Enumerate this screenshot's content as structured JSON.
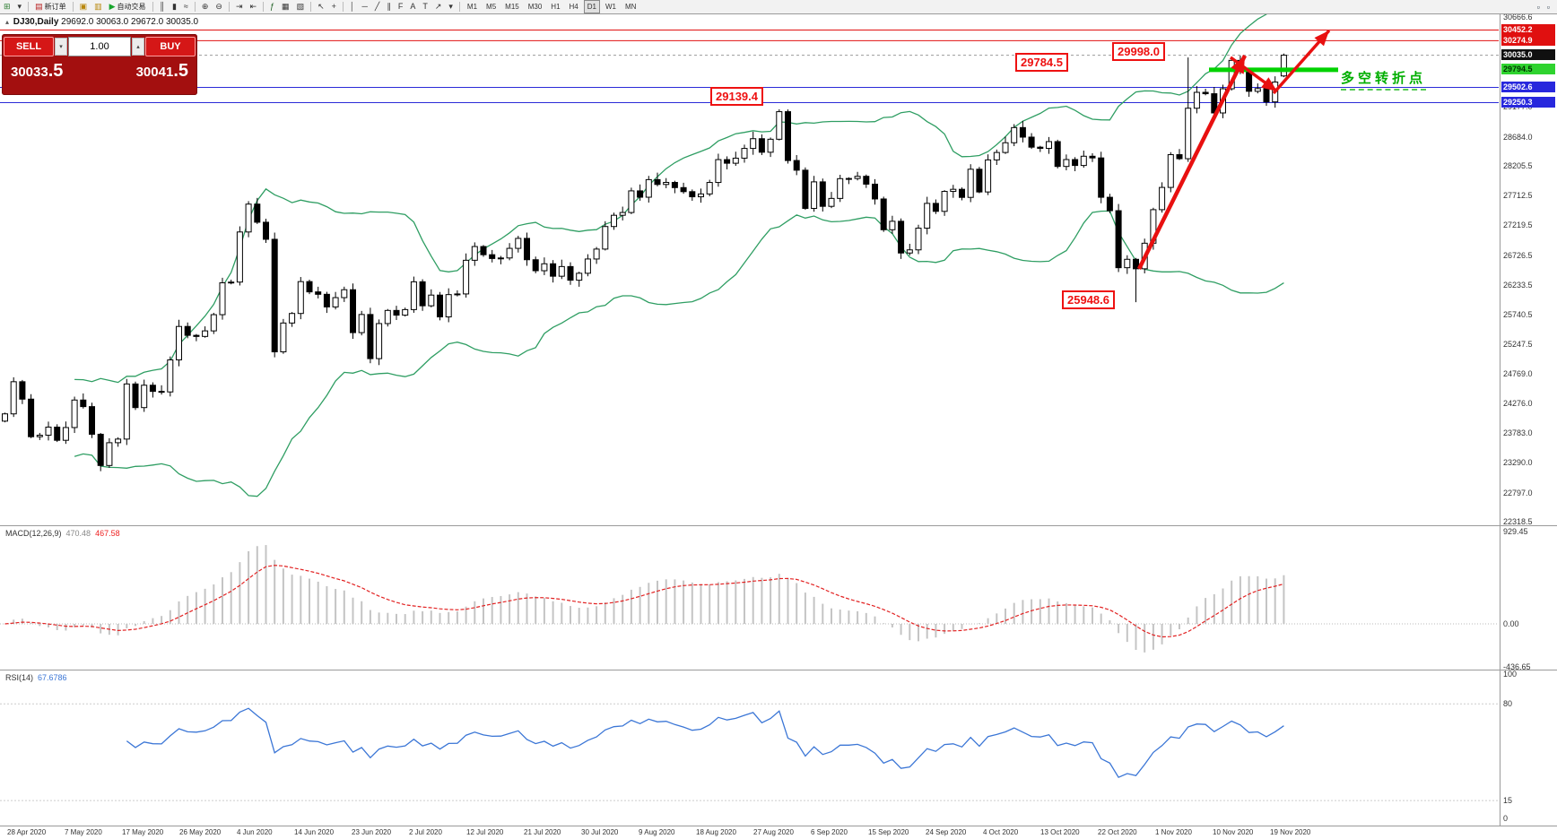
{
  "toolbar": {
    "items": [
      {
        "name": "new-chart-icon",
        "glyph": "⊞",
        "color": "#2e7d32"
      },
      {
        "name": "new-chart-dropdown-icon",
        "glyph": "▾",
        "color": "#333"
      },
      {
        "type": "sep"
      },
      {
        "name": "new-order-button",
        "glyph": "▤",
        "color": "#b71c1c",
        "label": "新订单"
      },
      {
        "type": "sep"
      },
      {
        "name": "profiles-icon",
        "glyph": "▣",
        "color": "#b8860b"
      },
      {
        "name": "charts-list-icon",
        "glyph": "▥",
        "color": "#b8860b"
      },
      {
        "name": "autotrade-button",
        "glyph": "▶",
        "color": "#18a52c",
        "label": "自动交易"
      },
      {
        "type": "sep"
      },
      {
        "name": "bars-chart-icon",
        "glyph": "║",
        "color": "#333"
      },
      {
        "name": "candles-chart-icon",
        "glyph": "▮",
        "color": "#333"
      },
      {
        "name": "line-chart-icon",
        "glyph": "≈",
        "color": "#333"
      },
      {
        "type": "sep"
      },
      {
        "name": "zoom-in-icon",
        "glyph": "⊕",
        "color": "#333"
      },
      {
        "name": "zoom-out-icon",
        "glyph": "⊖",
        "color": "#333"
      },
      {
        "type": "sep"
      },
      {
        "name": "autoscroll-icon",
        "glyph": "⇥",
        "color": "#333"
      },
      {
        "name": "chart-shift-icon",
        "glyph": "⇤",
        "color": "#333"
      },
      {
        "type": "sep"
      },
      {
        "name": "indicators-icon",
        "glyph": "ƒ",
        "color": "#1b5e20"
      },
      {
        "name": "periods-icon",
        "glyph": "▦",
        "color": "#333"
      },
      {
        "name": "templates-icon",
        "glyph": "▧",
        "color": "#333"
      },
      {
        "type": "sep"
      },
      {
        "name": "cursor-icon",
        "glyph": "↖",
        "color": "#333"
      },
      {
        "name": "crosshair-icon",
        "glyph": "+",
        "color": "#333"
      },
      {
        "type": "sep"
      },
      {
        "name": "vertical-line-icon",
        "glyph": "│",
        "color": "#333"
      },
      {
        "name": "horizontal-line-icon",
        "glyph": "─",
        "color": "#333"
      },
      {
        "name": "trendline-icon",
        "glyph": "╱",
        "color": "#333"
      },
      {
        "name": "channel-icon",
        "glyph": "∥",
        "color": "#333"
      },
      {
        "name": "fibonacci-icon",
        "glyph": "F",
        "color": "#333"
      },
      {
        "name": "text-icon",
        "glyph": "A",
        "color": "#333"
      },
      {
        "name": "label-icon",
        "glyph": "T",
        "color": "#333"
      },
      {
        "name": "arrows-icon",
        "glyph": "↗",
        "color": "#333"
      },
      {
        "name": "arrows-dropdown-icon",
        "glyph": "▾",
        "color": "#333"
      },
      {
        "type": "sep"
      }
    ],
    "timeframes": [
      "M1",
      "M5",
      "M15",
      "M30",
      "H1",
      "H4",
      "D1",
      "W1",
      "MN"
    ],
    "active_timeframe": "D1",
    "right_icons": [
      {
        "name": "favorites-icon",
        "glyph": "▫"
      },
      {
        "name": "layout-icon",
        "glyph": "▫"
      }
    ]
  },
  "chart": {
    "symbol_title": "DJ30,Daily",
    "ohlc_title": "29692.0 30063.0 29672.0 30035.0",
    "trade_panel": {
      "sell_label": "SELL",
      "buy_label": "BUY",
      "volume": "1.00",
      "sell_price_main": "30033",
      "sell_price_frac": ".5",
      "buy_price_main": "30041",
      "buy_price_frac": ".5"
    },
    "price_axis": {
      "ticks": [
        "30666.6",
        "29177.0",
        "28684.0",
        "28205.5",
        "27712.5",
        "27219.5",
        "26726.5",
        "26233.5",
        "25740.5",
        "25247.5",
        "24769.0",
        "24276.0",
        "23783.0",
        "23290.0",
        "22797.0",
        "22318.5"
      ],
      "boxes": [
        {
          "value": "30452.2",
          "bg": "#e01010",
          "fg": "#ffffff"
        },
        {
          "value": "30274.9",
          "bg": "#e01010",
          "fg": "#ffffff"
        },
        {
          "value": "30035.0",
          "bg": "#101010",
          "fg": "#ffffff"
        },
        {
          "value": "29794.5",
          "bg": "#2fd32f",
          "fg": "#003300"
        },
        {
          "value": "29502.6",
          "bg": "#2828dd",
          "fg": "#ffffff"
        },
        {
          "value": "29250.3",
          "bg": "#2828dd",
          "fg": "#ffffff"
        }
      ]
    },
    "levels": {
      "resistance": [
        30452.2,
        30274.9
      ],
      "support": [
        29502.6,
        29250.3
      ],
      "pivot_green": 29794.5,
      "current": 30035.0
    },
    "annotations": {
      "labels": [
        {
          "text": "29784.5"
        },
        {
          "text": "29998.0"
        },
        {
          "text": "29139.4"
        },
        {
          "text": "25948.6"
        }
      ],
      "turning_point": "多空转折点"
    }
  },
  "macd_panel": {
    "title": "MACD(12,26,9)",
    "value_main": "470.48",
    "value_signal": "467.58",
    "axis": [
      "929.45",
      "0.00",
      "-436.65"
    ]
  },
  "rsi_panel": {
    "title": "RSI(14)",
    "value": "67.6786",
    "axis": [
      "100",
      "80",
      "15",
      "0"
    ],
    "levels": [
      80,
      15
    ]
  },
  "chart_data": {
    "type": "candlestick",
    "symbol": "DJ30",
    "timeframe": "Daily",
    "x_labels": [
      "28 Apr 2020",
      "7 May 2020",
      "17 May 2020",
      "26 May 2020",
      "4 Jun 2020",
      "14 Jun 2020",
      "23 Jun 2020",
      "2 Jul 2020",
      "12 Jul 2020",
      "21 Jul 2020",
      "30 Jul 2020",
      "9 Aug 2020",
      "18 Aug 2020",
      "27 Aug 2020",
      "6 Sep 2020",
      "15 Sep 2020",
      "24 Sep 2020",
      "4 Oct 2020",
      "13 Oct 2020",
      "22 Oct 2020",
      "1 Nov 2020",
      "10 Nov 2020",
      "19 Nov 2020"
    ],
    "closes": [
      24102,
      24634,
      24346,
      23724,
      23749,
      23883,
      23665,
      23876,
      24331,
      24222,
      23765,
      23248,
      23625,
      23685,
      24597,
      24206,
      24576,
      24474,
      24465,
      24995,
      25548,
      25401,
      25383,
      25475,
      25743,
      26270,
      26282,
      27111,
      27572,
      27272,
      26990,
      25128,
      25605,
      25763,
      26290,
      26120,
      26080,
      25871,
      26025,
      26156,
      25446,
      25746,
      25016,
      25596,
      25813,
      25735,
      25827,
      26287,
      25890,
      26067,
      25706,
      26075,
      26086,
      26643,
      26870,
      26735,
      26672,
      26681,
      26840,
      27005,
      26652,
      26470,
      26585,
      26379,
      26539,
      26313,
      26428,
      26664,
      26828,
      27201,
      27387,
      27433,
      27791,
      27686,
      27977,
      27897,
      27931,
      27845,
      27778,
      27693,
      27740,
      27930,
      28308,
      28248,
      28332,
      28493,
      28654,
      28430,
      28645,
      29101,
      28293,
      28133,
      27501,
      27940,
      27535,
      27666,
      27993,
      27996,
      28032,
      27902,
      27657,
      27148,
      27288,
      26763,
      26815,
      27174,
      27584,
      27452,
      27782,
      27817,
      27683,
      28149,
      27773,
      28303,
      28426,
      28587,
      28838,
      28680,
      28514,
      28494,
      28606,
      28195,
      28309,
      28211,
      28364,
      28336,
      27685,
      27463,
      26520,
      26659,
      26502,
      26925,
      27480,
      27848,
      28390,
      28323,
      29158,
      29421,
      29398,
      29080,
      29480,
      29950,
      29783,
      29438,
      29483,
      29263,
      29591,
      30035
    ],
    "last_ohlc": [
      29692.0,
      30063.0,
      29672.0,
      30035.0
    ],
    "high_overrides": {
      "89": 29139.4,
      "136": 29998.0
    },
    "low_overrides": {
      "130": 25948.6
    },
    "price_range": [
      22318.5,
      30666.6
    ],
    "overlays": {
      "bollinger_period": 20,
      "bollinger_dev": 2
    },
    "macd": {
      "fast": 12,
      "slow": 26,
      "signal": 9,
      "range": [
        -436.65,
        929.45
      ]
    },
    "rsi": {
      "period": 14,
      "range": [
        0,
        100
      ]
    }
  }
}
